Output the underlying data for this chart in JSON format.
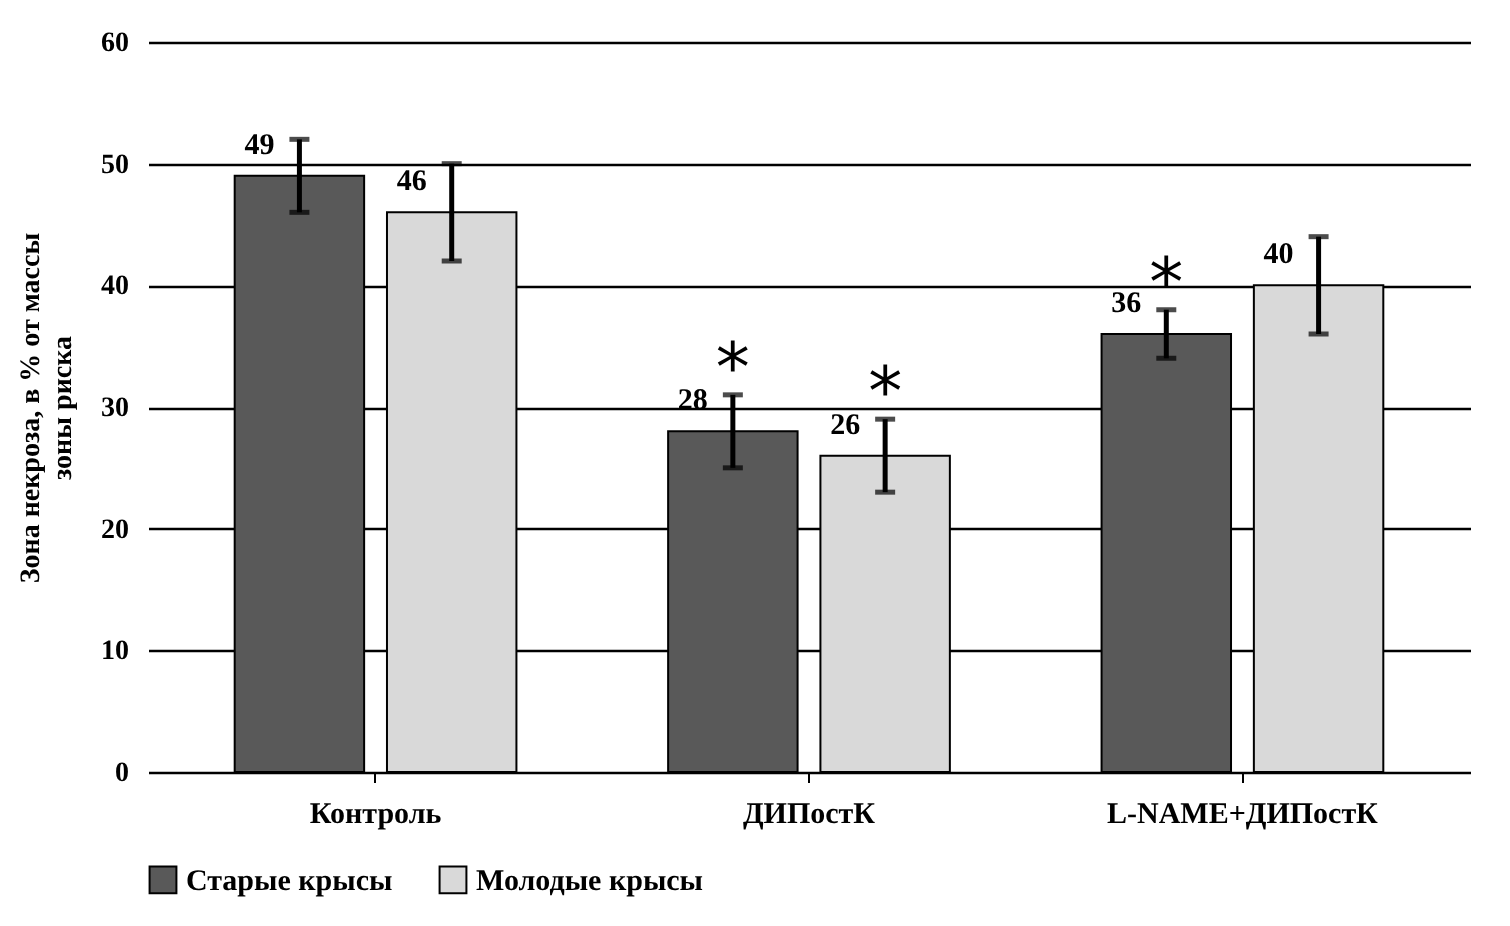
{
  "chart_data": {
    "type": "bar",
    "ylabel": "Зона некроза,  в  % от массы зоны риска",
    "categories": [
      "Контроль",
      "ДИПостК",
      "L-NAME+ДИПостК"
    ],
    "series": [
      {
        "name": "Старые крысы",
        "color": "#595959",
        "values": [
          49,
          28,
          36
        ],
        "errors": [
          3,
          3,
          2
        ]
      },
      {
        "name": "Молодые крысы",
        "color": "#d9d9d9",
        "values": [
          46,
          26,
          40
        ],
        "errors": [
          4,
          3,
          4
        ]
      }
    ],
    "ylim": [
      0,
      60
    ],
    "yticks": [
      0,
      10,
      20,
      30,
      40,
      50,
      60
    ],
    "grid": "y",
    "legend": "bottom",
    "data_labels": true,
    "annotations": [
      "*",
      "*",
      "*"
    ]
  }
}
